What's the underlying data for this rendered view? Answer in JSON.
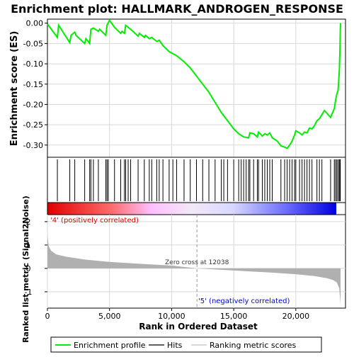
{
  "chart_data": {
    "type": "line",
    "title": "Enrichment plot: HALLMARK_ANDROGEN_RESPONSE",
    "top_panel": {
      "ylabel": "Enrichment score (ES)",
      "ylim": [
        -0.33,
        0.01
      ],
      "yticks": [
        0.0,
        -0.05,
        -0.1,
        -0.15,
        -0.2,
        -0.25,
        -0.3
      ],
      "ytick_labels": [
        "0.00",
        "-0.05",
        "-0.10",
        "-0.15",
        "-0.20",
        "-0.25",
        "-0.30"
      ],
      "series": [
        {
          "name": "Enrichment profile",
          "color": "#00ee00",
          "x": [
            0,
            800,
            900,
            1800,
            1900,
            2200,
            2300,
            3000,
            3100,
            3400,
            3500,
            3700,
            4100,
            4200,
            4700,
            4800,
            5000,
            5400,
            5900,
            6000,
            6200,
            6300,
            6500,
            6700,
            7300,
            7400,
            7800,
            7900,
            8200,
            8400,
            8800,
            9000,
            9300,
            9800,
            10100,
            10400,
            11000,
            11500,
            12000,
            12500,
            13000,
            13500,
            14000,
            14500,
            15000,
            15400,
            15800,
            16200,
            16300,
            16600,
            16900,
            17000,
            17300,
            17500,
            17700,
            17900,
            18100,
            18500,
            18800,
            19100,
            19300,
            19500,
            19700,
            19900,
            20000,
            20300,
            20500,
            20700,
            20900,
            21100,
            21300,
            21500,
            21700,
            21900,
            22100,
            22300,
            22800,
            23100,
            23200,
            23300,
            23400,
            23500,
            23550,
            23580,
            23600
          ],
          "y": [
            -0.002,
            -0.035,
            -0.005,
            -0.048,
            -0.03,
            -0.022,
            -0.03,
            -0.05,
            -0.038,
            -0.05,
            -0.015,
            -0.012,
            -0.02,
            -0.015,
            -0.03,
            -0.005,
            0.007,
            -0.01,
            -0.025,
            -0.02,
            -0.025,
            -0.005,
            -0.01,
            -0.015,
            -0.032,
            -0.025,
            -0.035,
            -0.03,
            -0.038,
            -0.035,
            -0.045,
            -0.042,
            -0.055,
            -0.07,
            -0.075,
            -0.08,
            -0.095,
            -0.11,
            -0.13,
            -0.15,
            -0.17,
            -0.195,
            -0.22,
            -0.24,
            -0.26,
            -0.272,
            -0.28,
            -0.282,
            -0.27,
            -0.272,
            -0.28,
            -0.268,
            -0.278,
            -0.272,
            -0.275,
            -0.27,
            -0.282,
            -0.29,
            -0.302,
            -0.305,
            -0.308,
            -0.3,
            -0.29,
            -0.275,
            -0.265,
            -0.27,
            -0.275,
            -0.268,
            -0.27,
            -0.258,
            -0.26,
            -0.252,
            -0.24,
            -0.235,
            -0.225,
            -0.215,
            -0.232,
            -0.21,
            -0.19,
            -0.175,
            -0.165,
            -0.12,
            -0.07,
            -0.02,
            0.0
          ]
        }
      ]
    },
    "hits_panel": {
      "legend_label": "Hits",
      "hit_positions": [
        800,
        1800,
        2200,
        3000,
        3400,
        3500,
        3700,
        4100,
        4700,
        4800,
        4900,
        5400,
        5900,
        6200,
        6300,
        6500,
        6700,
        7300,
        7800,
        8200,
        8400,
        8800,
        9000,
        9300,
        9800,
        10100,
        10400,
        11000,
        11500,
        12000,
        12500,
        13000,
        13500,
        14000,
        14200,
        14500,
        15000,
        15400,
        15600,
        15800,
        16000,
        16200,
        16300,
        16600,
        16900,
        17000,
        17300,
        17500,
        17700,
        17900,
        18100,
        18800,
        19100,
        19300,
        19500,
        19700,
        19900,
        20000,
        20300,
        20500,
        20700,
        20900,
        21100,
        21300,
        21700,
        21900,
        22100,
        22800,
        23100,
        23200,
        23300,
        23400,
        23500,
        23550,
        23580
      ]
    },
    "ranked_panel": {
      "ylabel": "Ranked list metric (Signal2Noise)",
      "xlabel": "Rank in Ordered Dataset",
      "ylim": [
        -1.7,
        2.3
      ],
      "yticks": [
        2,
        1,
        0,
        -1
      ],
      "ytick_labels": [
        "2",
        "1",
        "0",
        "-1"
      ],
      "xlim": [
        0,
        24000
      ],
      "xticks": [
        0,
        5000,
        10000,
        15000,
        20000
      ],
      "xtick_labels": [
        "0",
        "5,000",
        "10,000",
        "15,000",
        "20,000"
      ],
      "metric_points": {
        "x": [
          0,
          100,
          300,
          700,
          1500,
          3000,
          5000,
          8000,
          10000,
          12038,
          14000,
          16000,
          18000,
          20000,
          21500,
          22500,
          23000,
          23300,
          23500,
          23600
        ],
        "y": [
          1.45,
          0.95,
          0.75,
          0.6,
          0.5,
          0.38,
          0.28,
          0.18,
          0.12,
          0.0,
          -0.06,
          -0.12,
          -0.18,
          -0.25,
          -0.33,
          -0.42,
          -0.5,
          -0.6,
          -0.85,
          -1.55
        ]
      },
      "zero_cross_label": "Zero cross at 12038",
      "zero_cross_x": 12038,
      "pos_label": "'4' (positively correlated)",
      "neg_label": "'5' (negatively correlated)"
    },
    "legend": {
      "placement": "bottom",
      "items": [
        {
          "label": "Enrichment profile",
          "color": "#00ee00"
        },
        {
          "label": "Hits",
          "color": "#000000"
        },
        {
          "label": "Ranking metric scores",
          "color": "#c0c0c0"
        }
      ]
    },
    "colors": {
      "profile": "#00ee00",
      "metric_fill": "#b0b0b0",
      "pos_label": "#dd0000",
      "neg_label": "#0000dd",
      "bar_pos": "#ee0000",
      "bar_neg": "#0000ee",
      "grid": "#d8d8d8"
    },
    "grid": true
  }
}
